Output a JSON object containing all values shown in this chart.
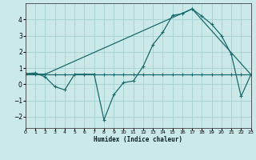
{
  "xlabel": "Humidex (Indice chaleur)",
  "background_color": "#cce9e9",
  "grid_color": "#aad4d4",
  "line_color": "#1a6b6b",
  "xlim": [
    0,
    23
  ],
  "ylim": [
    -2.7,
    5.0
  ],
  "xticks": [
    0,
    1,
    2,
    3,
    4,
    5,
    6,
    7,
    8,
    9,
    10,
    11,
    12,
    13,
    14,
    15,
    16,
    17,
    18,
    19,
    20,
    21,
    22,
    23
  ],
  "yticks": [
    -2,
    -1,
    0,
    1,
    2,
    3,
    4
  ],
  "line1_x": [
    0,
    1,
    2,
    3,
    4,
    5,
    6,
    7,
    8,
    9,
    10,
    11,
    12,
    13,
    14,
    15,
    16,
    17,
    18,
    19,
    20,
    21,
    22,
    23
  ],
  "line1_y": [
    0.65,
    0.7,
    0.45,
    -0.15,
    -0.35,
    0.62,
    0.62,
    0.62,
    -2.2,
    -0.65,
    0.1,
    0.2,
    1.1,
    2.45,
    3.2,
    4.25,
    4.35,
    4.65,
    4.2,
    3.7,
    3.0,
    1.85,
    -0.75,
    0.6
  ],
  "line2_x": [
    0,
    1,
    2,
    3,
    4,
    5,
    6,
    7,
    8,
    9,
    10,
    11,
    12,
    13,
    14,
    15,
    16,
    17,
    18,
    19,
    20,
    21,
    22,
    23
  ],
  "line2_y": [
    0.62,
    0.62,
    0.62,
    0.62,
    0.62,
    0.62,
    0.62,
    0.62,
    0.62,
    0.62,
    0.62,
    0.62,
    0.62,
    0.62,
    0.62,
    0.62,
    0.62,
    0.62,
    0.62,
    0.62,
    0.62,
    0.62,
    0.62,
    0.62
  ],
  "line3_x": [
    0,
    2,
    17,
    23
  ],
  "line3_y": [
    0.65,
    0.62,
    4.65,
    0.6
  ]
}
